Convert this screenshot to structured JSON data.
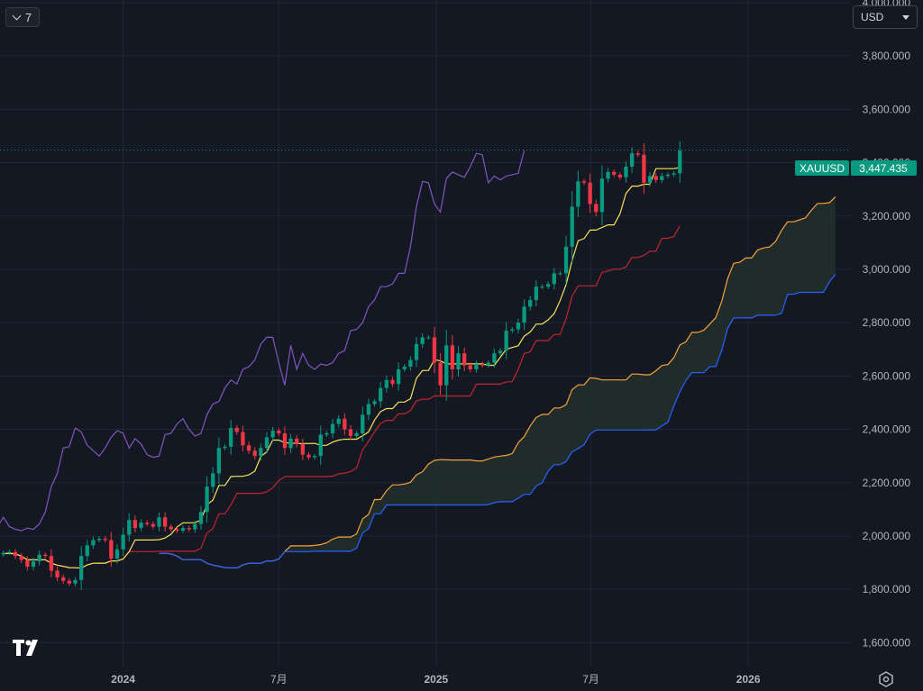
{
  "toolbar": {
    "interval_label": "7"
  },
  "currency": {
    "selected": "USD"
  },
  "price_tag": {
    "symbol": "XAUUSD",
    "value": "3,447.435",
    "color": "#089981"
  },
  "icons": {
    "logo": "tradingview-logo-icon",
    "settings": "gear-icon",
    "dropdown": "chevron-down-icon"
  },
  "colors": {
    "background": "#141823",
    "grid": "#222633",
    "up": "#089981",
    "down": "#f23645",
    "tenkan": "#f7e35a",
    "kijun": "#c2262a",
    "chikou": "#7e57c2",
    "span_a": "#f7a23a",
    "span_b": "#2962ff",
    "cloud": "#21302b"
  },
  "chart_data": {
    "type": "candlestick",
    "symbol": "XAUUSD",
    "y_axis": {
      "ticks": [
        "1,600.000",
        "1,800.000",
        "2,000.000",
        "2,200.000",
        "2,400.000",
        "2,600.000",
        "2,800.000",
        "3,000.000",
        "3,200.000",
        "3,400.000",
        "3,600.000",
        "3,800.000",
        "4,000.000"
      ],
      "tick_values": [
        1600,
        1800,
        2000,
        2200,
        2400,
        2600,
        2800,
        3000,
        3200,
        3400,
        3600,
        3800,
        4000
      ],
      "range": [
        1510,
        4010
      ]
    },
    "x_axis": {
      "ticks": [
        {
          "label": "2024",
          "date": "2024-01-01",
          "bold": true
        },
        {
          "label": "7月",
          "date": "2024-07-01",
          "bold": false
        },
        {
          "label": "2025",
          "date": "2025-01-01",
          "bold": true
        },
        {
          "label": "7月",
          "date": "2025-07-01",
          "bold": false
        },
        {
          "label": "2026",
          "date": "2026-01-01",
          "bold": true
        }
      ],
      "range": [
        "2023-08-10",
        "2026-05-01"
      ]
    },
    "last_price": 3447.435,
    "candles_weekly": {
      "start": "2023-08-14",
      "closes": [
        1937,
        1940,
        1925,
        1910,
        1885,
        1905,
        1930,
        1925,
        1870,
        1845,
        1832,
        1822,
        1835,
        1925,
        1965,
        1985,
        1990,
        1985,
        1915,
        1950,
        2005,
        2060,
        2030,
        2050,
        2045,
        2035,
        2070,
        2035,
        2025,
        2020,
        2030,
        2025,
        2045,
        2090,
        2185,
        2235,
        2330,
        2335,
        2405,
        2390,
        2340,
        2320,
        2300,
        2330,
        2370,
        2395,
        2385,
        2330,
        2365,
        2345,
        2305,
        2295,
        2300,
        2380,
        2385,
        2420,
        2440,
        2400,
        2375,
        2385,
        2455,
        2495,
        2505,
        2555,
        2585,
        2570,
        2625,
        2635,
        2660,
        2720,
        2745,
        2745,
        2650,
        2565,
        2715,
        2625,
        2685,
        2640,
        2625,
        2645,
        2640,
        2650,
        2685,
        2695,
        2770,
        2775,
        2800,
        2860,
        2885,
        2935,
        2935,
        2945,
        2985,
        2985,
        3085,
        3235,
        3330,
        3325,
        3245,
        3215,
        3340,
        3365,
        3355,
        3345,
        3385,
        3435,
        3430,
        3325,
        3350,
        3335,
        3350,
        3355,
        3360,
        3445
      ],
      "wicks_note": "OHLC approximated from the visible candles"
    },
    "indicators": [
      {
        "name": "tenkan",
        "color": "#f7e35a"
      },
      {
        "name": "kijun",
        "color": "#c2262a"
      },
      {
        "name": "chikou",
        "color": "#7e57c2"
      },
      {
        "name": "senkou_span_a",
        "color": "#f7a23a"
      },
      {
        "name": "senkou_span_b",
        "color": "#2962ff"
      }
    ]
  }
}
